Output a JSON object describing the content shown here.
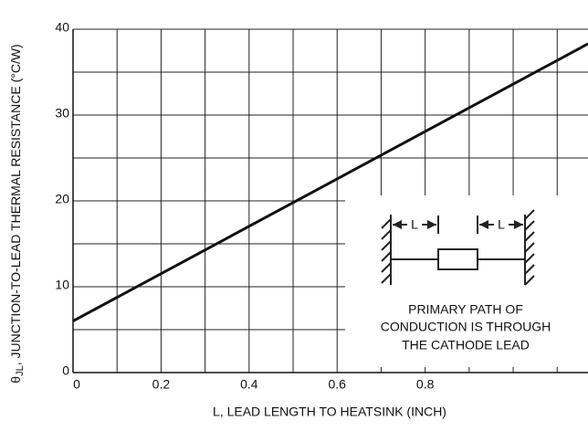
{
  "chart_data": {
    "type": "line",
    "xlabel": "L, LEAD LENGTH TO HEATSINK (INCH)",
    "ylabel": [
      "θ",
      "JL",
      ", JUNCTION-TO-LEAD THERMAL RESISTANCE (°C/W)"
    ],
    "x": [
      0,
      1.17
    ],
    "series": [
      {
        "color": "#111111",
        "values": [
          6,
          38.3
        ]
      }
    ],
    "xlim": [
      0,
      1.17
    ],
    "ylim": [
      0,
      40
    ],
    "xticks": [
      0,
      0.2,
      0.4,
      0.6,
      0.8
    ],
    "yticks": [
      0,
      10,
      20,
      30,
      40
    ],
    "xgrid": [
      0,
      0.1,
      0.2,
      0.3,
      0.4,
      0.5,
      0.6,
      0.7,
      0.8,
      0.9,
      1.0,
      1.1
    ],
    "ygrid": [
      0,
      5,
      10,
      15,
      20,
      25,
      30,
      35,
      40
    ],
    "grid": true,
    "annotations": [
      "L",
      "L",
      "PRIMARY PATH OF",
      "CONDUCTION IS THROUGH",
      "THE CATHODE LEAD"
    ]
  }
}
